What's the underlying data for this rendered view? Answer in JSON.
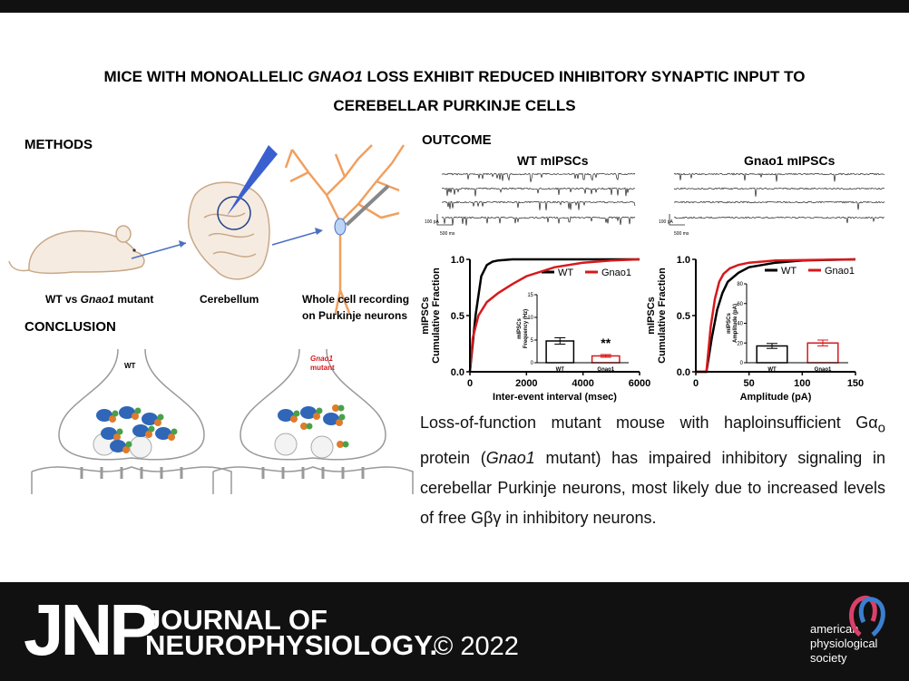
{
  "header": {
    "title": [
      "MICE WITH MONOALLELIC ",
      "GNAO1",
      " LOSS EXHIBIT REDUCED INHIBITORY SYNAPTIC INPUT TO",
      "CEREBELLAR PURKINJE CELLS"
    ]
  },
  "methods": {
    "heading": "METHODS",
    "labels": [
      [
        "WT vs ",
        "Gnao1",
        " mutant"
      ],
      [
        "Cerebellum"
      ],
      [
        "Whole cell recording",
        "on Purkinje neurons"
      ]
    ]
  },
  "conclusion": {
    "heading": "CONCLUSION",
    "wt_label": "WT",
    "mutant_label": [
      "Gnao1",
      "mutant"
    ]
  },
  "outcome": {
    "heading": "OUTCOME",
    "traces": [
      {
        "title": "WT mIPSCs",
        "scale_y": "100 pA",
        "scale_x": "500 ms"
      },
      {
        "title": "Gnao1 mIPSCs",
        "scale_y": "100 pA",
        "scale_x": "500 ms"
      }
    ],
    "summary": [
      "Loss-of-function mutant mouse with haploinsufficient G",
      "α",
      "o",
      " protein (",
      "Gnao1",
      " mutant) has impaired inhibitory signaling in cerebellar Purkinje neurons, most likely due to increased levels of free G",
      "βγ",
      " in inhibitory neurons."
    ]
  },
  "chart_data": [
    {
      "type": "line",
      "ylabel": [
        "mIPSCs",
        "Cumulative Fraction"
      ],
      "xlabel": "Inter-event interval (msec)",
      "xlim": [
        0,
        6000
      ],
      "xticks": [
        0,
        2000,
        4000,
        6000
      ],
      "ylim": [
        0,
        1
      ],
      "yticks": [
        {
          "value": 0,
          "label": "0.0"
        },
        {
          "value": 0.5,
          "label": "0.5"
        },
        {
          "value": 1,
          "label": "1.0"
        }
      ],
      "series": [
        {
          "name": "WT",
          "color": "#000000",
          "x": [
            0,
            200,
            400,
            600,
            800,
            1000,
            1500,
            6000
          ],
          "values": [
            0,
            0.5,
            0.85,
            0.95,
            0.98,
            0.99,
            1,
            1
          ]
        },
        {
          "name": "Gnao1",
          "color": "#d7191c",
          "x": [
            0,
            100,
            300,
            600,
            1000,
            1500,
            2000,
            3000,
            4000,
            5000,
            6000
          ],
          "values": [
            0,
            0.3,
            0.5,
            0.62,
            0.7,
            0.78,
            0.85,
            0.93,
            0.97,
            0.99,
            1
          ]
        }
      ]
    },
    {
      "type": "bar",
      "ylabel": [
        "mIPSCs",
        "Frequency (Hz)"
      ],
      "categories": [
        "WT",
        "Gnao1"
      ],
      "values": [
        4.8,
        1.5
      ],
      "errors": [
        0.7,
        0.3
      ],
      "colors": [
        "#000000",
        "#d7191c"
      ],
      "ylim": [
        0,
        15
      ],
      "yticks": [
        0,
        5,
        10,
        15
      ],
      "annotation": "**"
    },
    {
      "type": "line",
      "ylabel": [
        "mIPSCs",
        "Cumulative Fraction"
      ],
      "xlabel": "Amplitude (pA)",
      "xlim": [
        0,
        150
      ],
      "xticks": [
        0,
        50,
        100,
        150
      ],
      "ylim": [
        0,
        1
      ],
      "yticks": [
        {
          "value": 0,
          "label": "0.0"
        },
        {
          "value": 0.5,
          "label": "0.5"
        },
        {
          "value": 1,
          "label": "1.0"
        }
      ],
      "series": [
        {
          "name": "WT",
          "color": "#000000",
          "x": [
            0,
            10,
            15,
            20,
            25,
            30,
            40,
            50,
            75,
            100,
            150
          ],
          "values": [
            0,
            0,
            0.3,
            0.55,
            0.7,
            0.8,
            0.88,
            0.93,
            0.97,
            0.99,
            1
          ]
        },
        {
          "name": "Gnao1",
          "color": "#d7191c",
          "x": [
            0,
            10,
            14,
            18,
            22,
            26,
            32,
            40,
            50,
            75,
            150
          ],
          "values": [
            0,
            0,
            0.4,
            0.65,
            0.8,
            0.87,
            0.92,
            0.95,
            0.97,
            0.99,
            1
          ]
        }
      ]
    },
    {
      "type": "bar",
      "ylabel": [
        "mIPSCs",
        "Amplitude (pA)"
      ],
      "categories": [
        "WT",
        "Gnao1"
      ],
      "values": [
        17,
        20
      ],
      "errors": [
        2.5,
        3
      ],
      "colors": [
        "#000000",
        "#d7191c"
      ],
      "ylim": [
        0,
        80
      ],
      "yticks": [
        0,
        20,
        40,
        60,
        80
      ]
    }
  ],
  "footer": {
    "acronym": "JNP",
    "journal": [
      "JOURNAL OF",
      "NEUROPHYSIOLOGY."
    ],
    "copyright": "© 2022",
    "society": [
      "american",
      "physiological",
      "society"
    ]
  }
}
